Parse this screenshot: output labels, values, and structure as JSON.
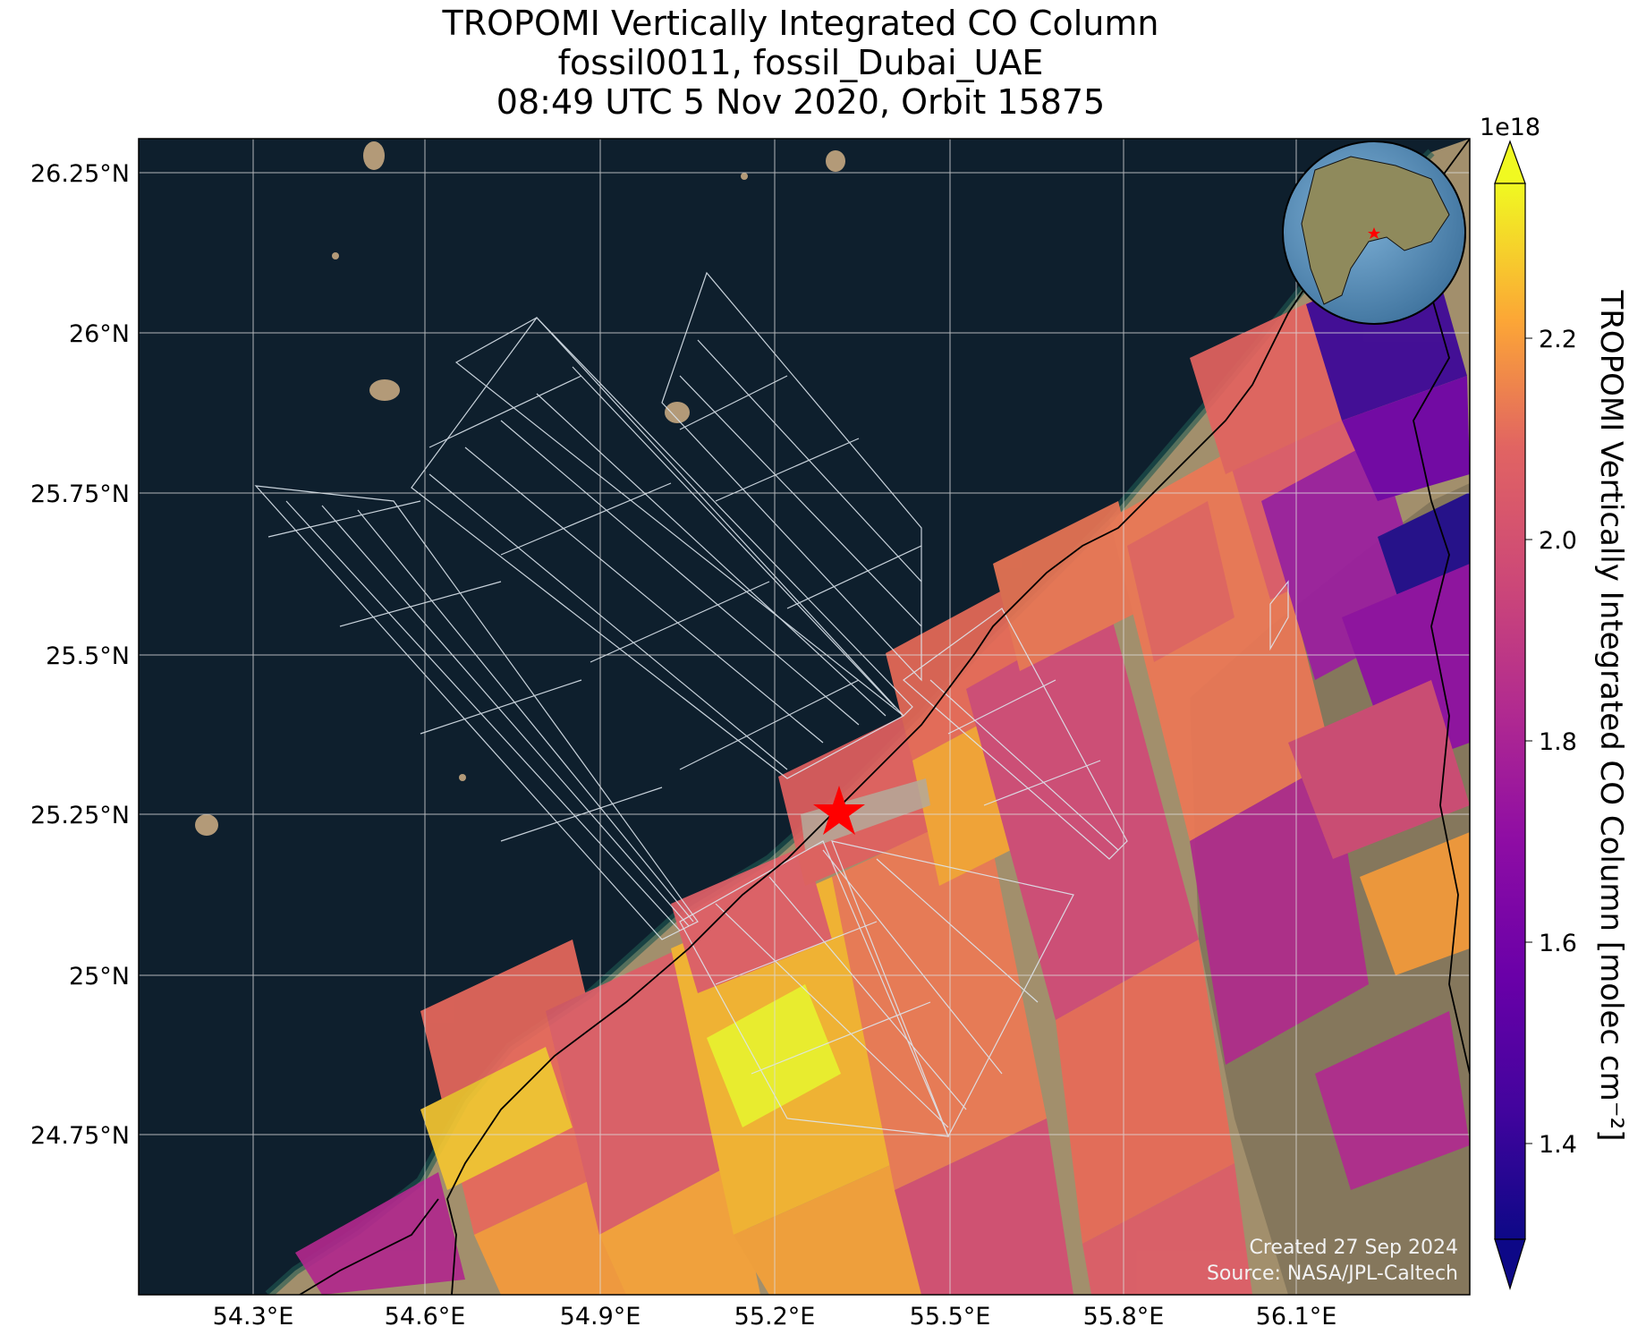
{
  "title": {
    "line1": "TROPOMI Vertically Integrated CO Column",
    "line2": "fossil0011, fossil_Dubai_UAE",
    "line3": "08:49 UTC 5 Nov 2020, Orbit 15875"
  },
  "map": {
    "lon_range": [
      54.1,
      56.4
    ],
    "lat_range": [
      24.5,
      26.3
    ],
    "lon_ticks": [
      "54.3°E",
      "54.6°E",
      "54.9°E",
      "55.2°E",
      "55.5°E",
      "55.8°E",
      "56.1°E"
    ],
    "lat_ticks": [
      "26.25°N",
      "26°N",
      "25.75°N",
      "25.5°N",
      "25.25°N",
      "25°N",
      "24.75°N"
    ],
    "gridlines": true,
    "target_marker": "red-star",
    "target_lon": 55.31,
    "target_lat": 25.27,
    "colors": {
      "sea": "#0e1f2d",
      "desert": "#a08e6e",
      "marker": "#ff0000"
    }
  },
  "colorbar": {
    "label": "TROPOMI Vertically Integrated CO Column [molec cm⁻²]",
    "multiplier": "1e18",
    "ticks": [
      "2.2",
      "2.0",
      "1.8",
      "1.6",
      "1.4"
    ],
    "range": [
      1.3,
      2.35
    ],
    "colormap": "plasma",
    "extend": "both"
  },
  "inset": {
    "name": "globe locator",
    "marker": "red-star"
  },
  "footer": {
    "created": "Created 27 Sep 2024",
    "source": "Source: NASA/JPL-Caltech"
  }
}
